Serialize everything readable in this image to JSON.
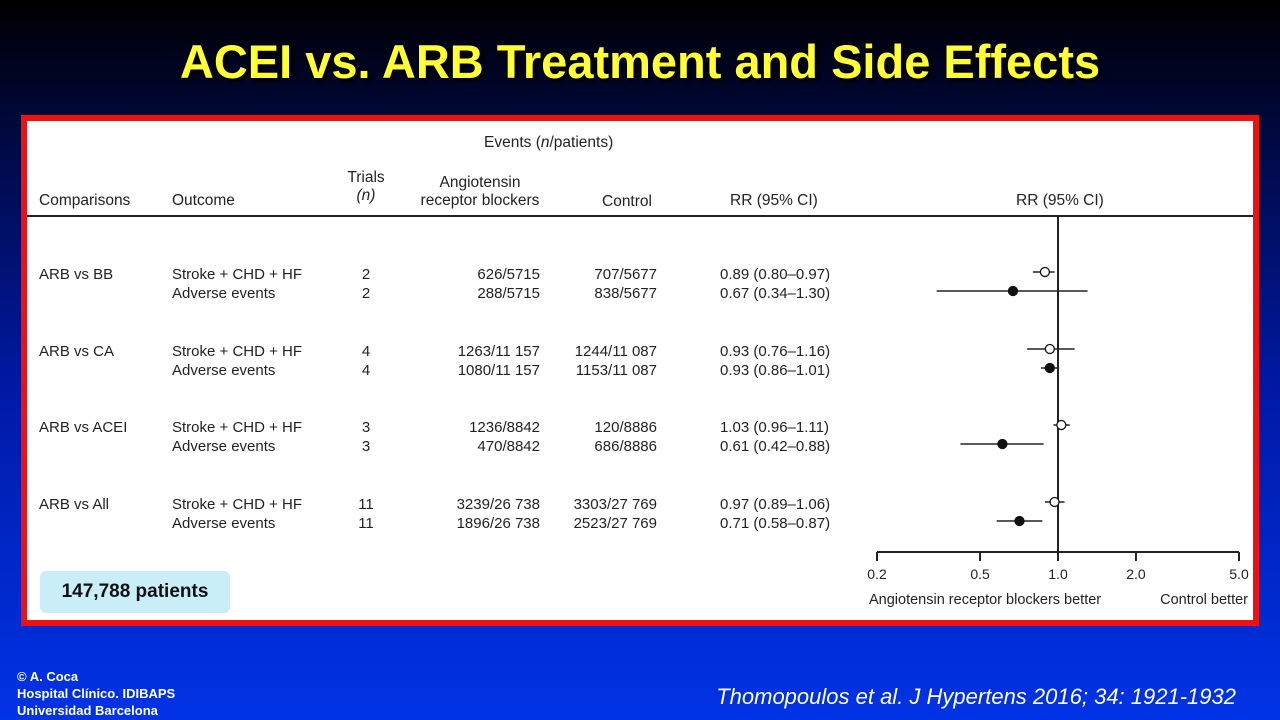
{
  "slide": {
    "title": "ACEI vs. ARB Treatment and Side Effects",
    "credit": [
      "© A. Coca",
      "Hospital Clínico. IDIBAPS",
      "Universidad Barcelona"
    ],
    "citation": "Thomopoulos et al. J Hypertens 2016; 34: 1921-1932"
  },
  "table": {
    "events_header_pre": "Events (",
    "events_header_n": "n",
    "events_header_post": "/patients)",
    "headers": {
      "comparisons": "Comparisons",
      "outcome": "Outcome",
      "trials_1": "Trials",
      "trials_2": "(n)",
      "arb_1": "Angiotensin",
      "arb_2": "receptor blockers",
      "control": "Control",
      "rr": "RR (95% CI)",
      "plot": "RR (95% CI)"
    },
    "groups": [
      {
        "comparison": "ARB vs BB",
        "rows": [
          {
            "outcome": "Stroke + CHD + HF",
            "trials": "2",
            "arb": "626/5715",
            "control": "707/5677",
            "rr_text": "0.89 (0.80–0.97)"
          },
          {
            "outcome": "Adverse events",
            "trials": "2",
            "arb": "288/5715",
            "control": "838/5677",
            "rr_text": "0.67 (0.34–1.30)"
          }
        ]
      },
      {
        "comparison": "ARB vs CA",
        "rows": [
          {
            "outcome": "Stroke + CHD + HF",
            "trials": "4",
            "arb": "1263/11 157",
            "control": "1244/11 087",
            "rr_text": "0.93 (0.76–1.16)"
          },
          {
            "outcome": "Adverse events",
            "trials": "4",
            "arb": "1080/11 157",
            "control": "1153/11 087",
            "rr_text": "0.93 (0.86–1.01)"
          }
        ]
      },
      {
        "comparison": "ARB vs ACEI",
        "rows": [
          {
            "outcome": "Stroke + CHD + HF",
            "trials": "3",
            "arb": "1236/8842",
            "control": "120/8886",
            "rr_text": "1.03 (0.96–1.11)"
          },
          {
            "outcome": "Adverse events",
            "trials": "3",
            "arb": "470/8842",
            "control": "686/8886",
            "rr_text": "0.61 (0.42–0.88)"
          }
        ]
      },
      {
        "comparison": "ARB vs All",
        "rows": [
          {
            "outcome": "Stroke + CHD + HF",
            "trials": "11",
            "arb": "3239/26 738",
            "control": "3303/27 769",
            "rr_text": "0.97 (0.89–1.06)"
          },
          {
            "outcome": "Adverse events",
            "trials": "11",
            "arb": "1896/26 738",
            "control": "2523/27 769",
            "rr_text": "0.71 (0.58–0.87)"
          }
        ]
      }
    ],
    "patients_badge": "147,788 patients"
  },
  "chart_data": {
    "type": "scatter",
    "x_scale": "log",
    "xlim": [
      0.2,
      5.0
    ],
    "x_ticks": [
      0.2,
      0.5,
      1.0,
      2.0,
      5.0
    ],
    "x_tick_labels": [
      "0.2",
      "0.5",
      "1.0",
      "2.0",
      "5.0"
    ],
    "reference_line": 1.0,
    "xlabel_left": "Angiotensin receptor blockers better",
    "xlabel_right": "Control better",
    "legend": "none",
    "points": [
      {
        "rr": 0.89,
        "lo": 0.8,
        "hi": 0.97,
        "marker": "open"
      },
      {
        "rr": 0.67,
        "lo": 0.34,
        "hi": 1.3,
        "marker": "filled"
      },
      {
        "rr": 0.93,
        "lo": 0.76,
        "hi": 1.16,
        "marker": "open"
      },
      {
        "rr": 0.93,
        "lo": 0.86,
        "hi": 1.01,
        "marker": "filled"
      },
      {
        "rr": 1.03,
        "lo": 0.96,
        "hi": 1.11,
        "marker": "open"
      },
      {
        "rr": 0.61,
        "lo": 0.42,
        "hi": 0.88,
        "marker": "filled"
      },
      {
        "rr": 0.97,
        "lo": 0.89,
        "hi": 1.06,
        "marker": "open"
      },
      {
        "rr": 0.71,
        "lo": 0.58,
        "hi": 0.87,
        "marker": "filled"
      }
    ]
  }
}
